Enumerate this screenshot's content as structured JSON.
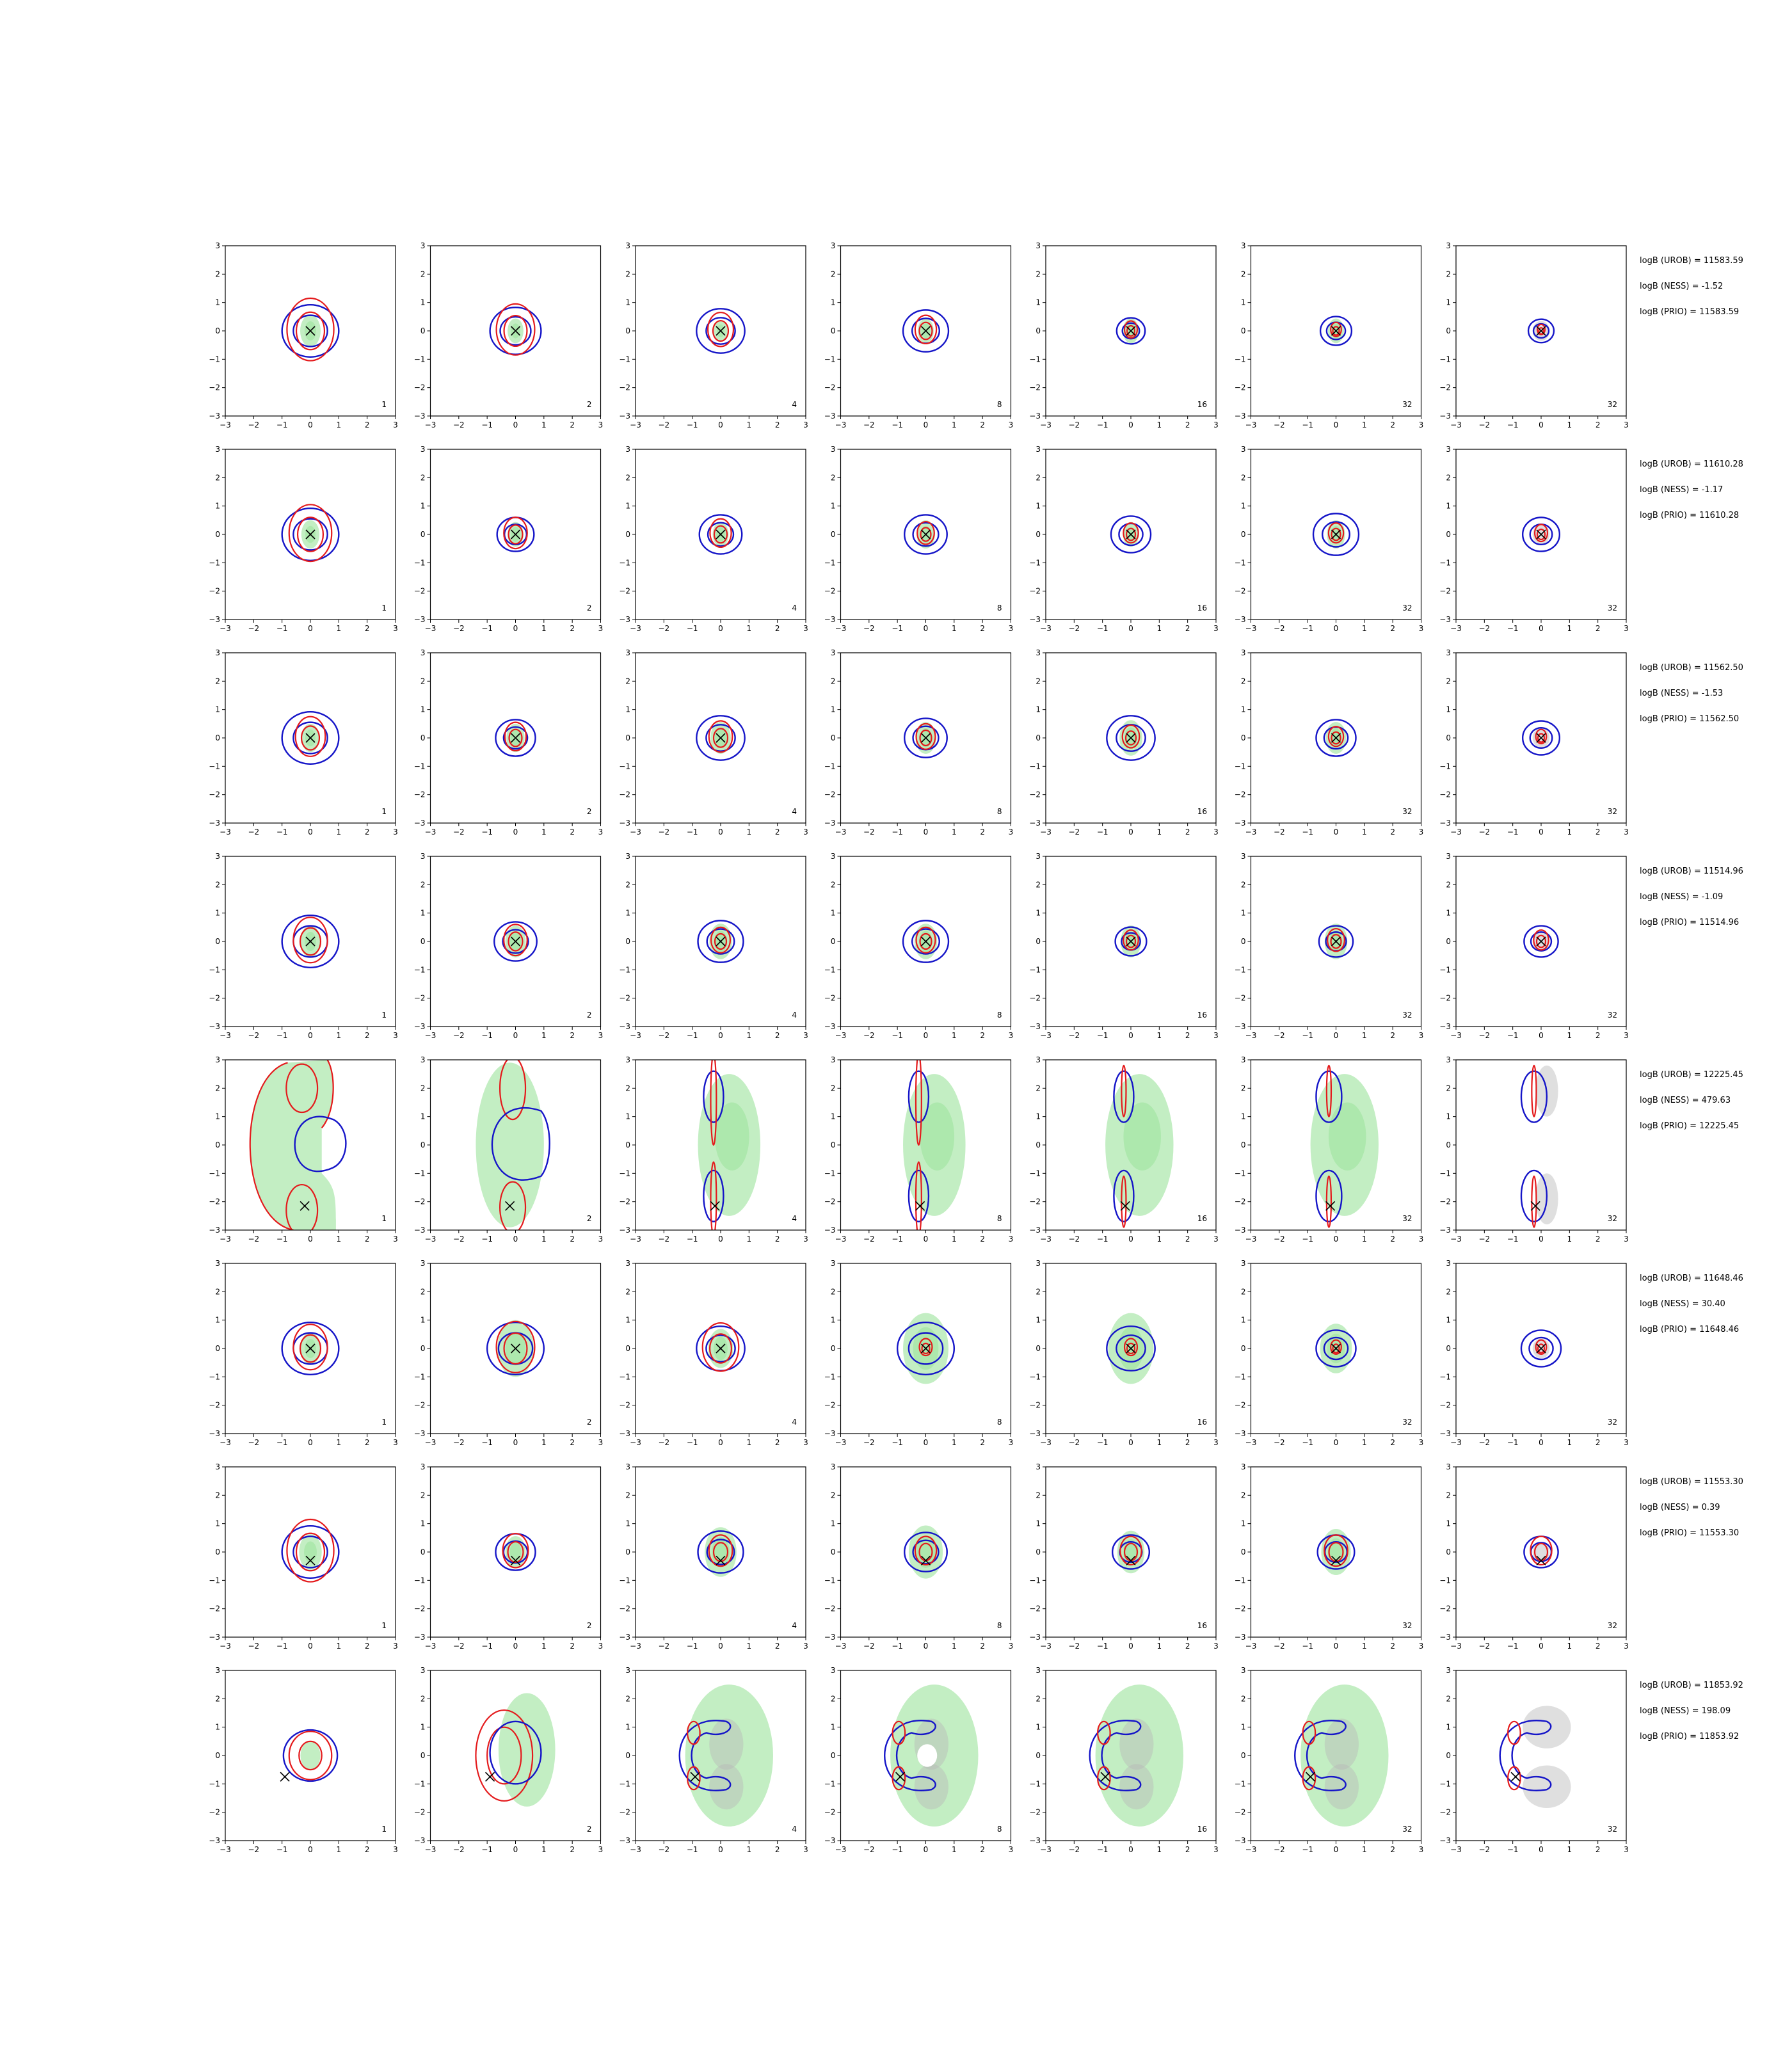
{
  "figure": {
    "background": "#ffffff",
    "colors": {
      "red_contour": "#e41a1c",
      "blue_contour": "#1515c8",
      "green_fill": "#9be39b",
      "gray_fill": "#b9b9b9",
      "marker": "#000000"
    }
  },
  "chart_data": {
    "type": "contour",
    "layout": {
      "rows": 8,
      "cols": 7
    },
    "xlim": [
      -3,
      3
    ],
    "ylim": [
      -3,
      3
    ],
    "xticks": [
      -3,
      -2,
      -1,
      0,
      1,
      2,
      3
    ],
    "yticks": [
      -3,
      -2,
      -1,
      0,
      1,
      2,
      3
    ],
    "panel_labels": [
      "1",
      "2",
      "4",
      "8",
      "16",
      "32",
      "32"
    ],
    "rows": [
      {
        "shape": "blob",
        "marker": [
          0,
          0
        ],
        "annotations": [
          "logB (UROB) = 11583.59",
          "logB (NESS) = -1.52",
          "logB (PRIO) = 11583.59"
        ],
        "green": [
          0.45,
          0.35,
          0.3,
          0.35,
          0.35,
          0.35,
          0
        ],
        "blue": [
          1.0,
          0.9,
          0.85,
          0.8,
          0.5,
          0.55,
          0.45
        ],
        "red": [
          1.1,
          0.9,
          0.6,
          0.5,
          0.3,
          0.25,
          0.18
        ]
      },
      {
        "shape": "blob",
        "marker": [
          0,
          0
        ],
        "annotations": [
          "logB (UROB) = 11610.28",
          "logB (NESS) = -1.17",
          "logB (PRIO) = 11610.28"
        ],
        "green": [
          0.4,
          0.35,
          0.35,
          0.4,
          0.35,
          0.4,
          0
        ],
        "blue": [
          1.0,
          0.65,
          0.75,
          0.75,
          0.7,
          0.8,
          0.65
        ],
        "red": [
          1.0,
          0.55,
          0.5,
          0.4,
          0.35,
          0.35,
          0.3
        ]
      },
      {
        "shape": "blob",
        "marker": [
          0,
          0
        ],
        "annotations": [
          "logB (UROB) = 11562.50",
          "logB (NESS) = -1.53",
          "logB (PRIO) = 11562.50"
        ],
        "green": [
          0.4,
          0.4,
          0.45,
          0.45,
          0.5,
          0.45,
          0
        ],
        "blue": [
          1.0,
          0.7,
          0.85,
          0.75,
          0.85,
          0.7,
          0.65
        ],
        "red": [
          0.7,
          0.5,
          0.55,
          0.45,
          0.4,
          0.35,
          0.25
        ]
      },
      {
        "shape": "blob",
        "marker": [
          0,
          0
        ],
        "annotations": [
          "logB (UROB) = 11514.96",
          "logB (NESS) = -1.09",
          "logB (PRIO) = 11514.96"
        ],
        "green": [
          0.45,
          0.45,
          0.5,
          0.5,
          0.45,
          0.5,
          0
        ],
        "blue": [
          1.0,
          0.75,
          0.8,
          0.8,
          0.55,
          0.6,
          0.6
        ],
        "red": [
          0.8,
          0.55,
          0.45,
          0.45,
          0.35,
          0.4,
          0.35
        ]
      },
      {
        "shape": "split",
        "marker": [
          -0.2,
          -2.15
        ],
        "annotations": [
          "logB (UROB) = 12225.45",
          "logB (NESS) = 479.63",
          "logB (PRIO) = 12225.45"
        ],
        "green": [
          1,
          1,
          1,
          1,
          1,
          1,
          0
        ]
      },
      {
        "shape": "blob",
        "marker": [
          0,
          0
        ],
        "annotations": [
          "logB (UROB) = 11648.46",
          "logB (NESS) = 30.40",
          "logB (PRIO) = 11648.46"
        ],
        "green": [
          0.45,
          0.8,
          0.55,
          1.0,
          1.0,
          0.7,
          0
        ],
        "blue": [
          1.0,
          1.0,
          0.85,
          1.0,
          0.85,
          0.7,
          0.7
        ],
        "red": [
          0.8,
          0.9,
          0.85,
          0.3,
          0.3,
          0.25,
          0.25
        ]
      },
      {
        "shape": "blob",
        "marker": [
          0,
          -0.3
        ],
        "annotations": [
          "logB (UROB) = 11553.30",
          "logB (NESS) = 0.39",
          "logB (PRIO) = 11553.30"
        ],
        "green": [
          0.5,
          0.45,
          0.7,
          0.75,
          0.6,
          0.65,
          0
        ],
        "blue": [
          1.0,
          0.7,
          0.8,
          0.75,
          0.65,
          0.65,
          0.6
        ],
        "red": [
          1.1,
          0.6,
          0.55,
          0.5,
          0.5,
          0.55,
          0.5
        ]
      },
      {
        "shape": "crescent",
        "marker": [
          -0.9,
          -0.75
        ],
        "annotations": [
          "logB (UROB) = 11853.92",
          "logB (NESS) = 198.09",
          "logB (PRIO) = 11853.92"
        ],
        "green": [
          0.45,
          1,
          1,
          1,
          1,
          1,
          0
        ]
      }
    ]
  }
}
